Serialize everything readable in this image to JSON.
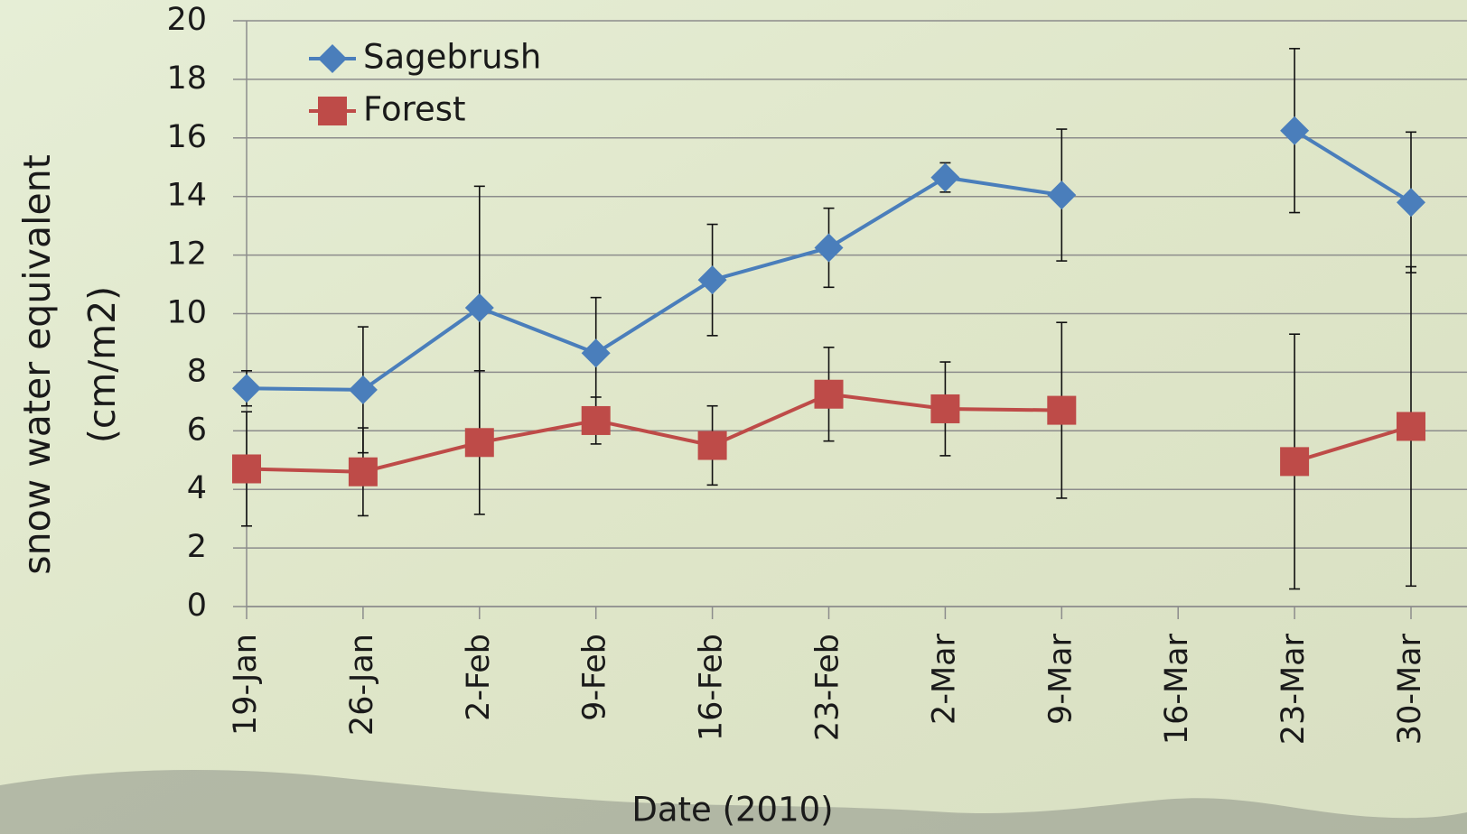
{
  "chart_data": {
    "type": "line",
    "xlabel": "Date (2010)",
    "ylabel": [
      "snow water equivalent",
      "(cm/m2)"
    ],
    "categories": [
      "19-Jan",
      "26-Jan",
      "2-Feb",
      "9-Feb",
      "16-Feb",
      "23-Feb",
      "2-Mar",
      "9-Mar",
      "16-Mar",
      "23-Mar",
      "30-Mar"
    ],
    "series": [
      {
        "name": "Sagebrush",
        "color": "#4a7ebb",
        "marker": "diamond",
        "values": [
          7.45,
          7.4,
          10.2,
          8.65,
          11.15,
          12.25,
          14.65,
          14.05,
          null,
          16.25,
          13.8
        ],
        "errors": [
          0.6,
          2.15,
          4.15,
          1.9,
          1.9,
          1.35,
          0.5,
          2.25,
          null,
          2.8,
          2.4
        ]
      },
      {
        "name": "Forest",
        "color": "#be4b48",
        "marker": "square",
        "values": [
          4.7,
          4.6,
          5.6,
          6.35,
          5.5,
          7.25,
          6.75,
          6.7,
          null,
          4.95,
          6.15
        ],
        "errors": [
          1.95,
          1.5,
          2.45,
          0.8,
          1.35,
          1.6,
          1.6,
          3.0,
          null,
          4.35,
          5.45
        ]
      }
    ],
    "ylim": [
      0,
      20
    ],
    "yticks": [
      0,
      2,
      4,
      6,
      8,
      10,
      12,
      14,
      16,
      18,
      20
    ],
    "grid": true,
    "legend": "upper left"
  }
}
